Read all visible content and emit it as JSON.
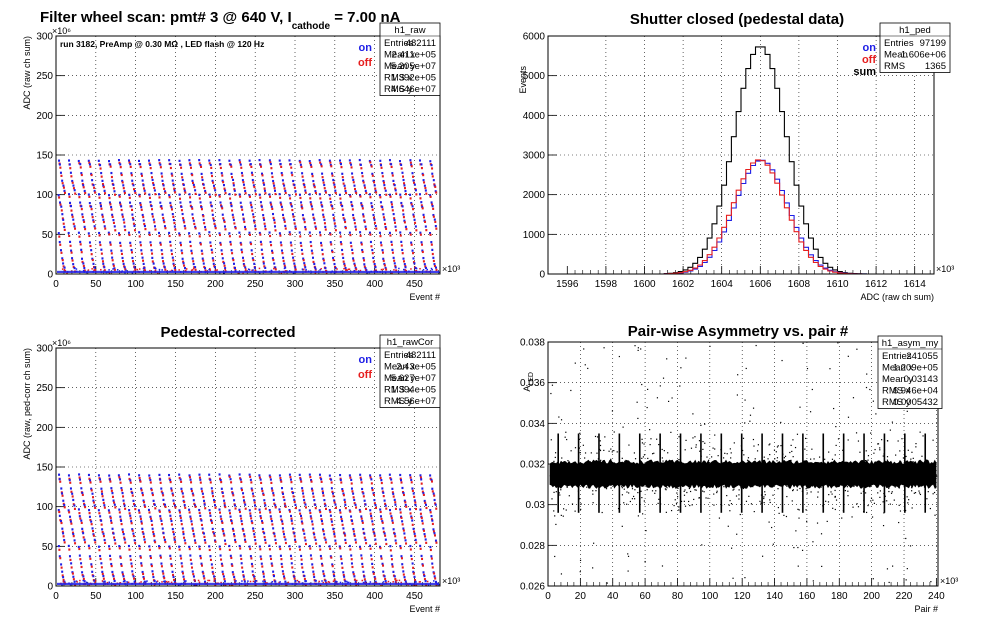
{
  "colors": {
    "on": "#1e1ee6",
    "off": "#e61e1e",
    "sum": "#000000"
  },
  "chart_data": [
    {
      "id": "raw",
      "type": "scatter",
      "title_parts": [
        "Filter wheel scan: pmt#",
        "3 @",
        "640 V, I",
        "cathode",
        "= 7.00 nA"
      ],
      "xlabel": "Event #",
      "ylabel": "ADC (raw ch sum)",
      "x_multiplier": "×10³",
      "y_multiplier": "×10⁶",
      "annotation": "run 3182, PreAmp @ 0.30 MΩ , LED flash @  120 Hz",
      "xlim": [
        0,
        482
      ],
      "ylim": [
        0,
        300
      ],
      "xticks": [
        "0",
        "50",
        "100",
        "150",
        "200",
        "250",
        "300",
        "350",
        "400",
        "450"
      ],
      "yticks": [
        "0",
        "50",
        "100",
        "150",
        "200",
        "250",
        "300"
      ],
      "grid": true,
      "legend": [
        "on",
        "off"
      ],
      "stats_box": {
        "name": "h1_raw",
        "rows": [
          [
            "Entries",
            "482111"
          ],
          [
            "Mean x",
            "2.411e+05"
          ],
          [
            "Mean y",
            "5.205e+07"
          ],
          [
            "RMS x",
            "1.392e+05"
          ],
          [
            "RMS y",
            "4.646e+07"
          ]
        ]
      },
      "band_levels": [
        143,
        138,
        127,
        118,
        112,
        105,
        100,
        90,
        85,
        75,
        68,
        60,
        52,
        40,
        30,
        20,
        13,
        8
      ],
      "scan_period": 12.6
    },
    {
      "id": "ped",
      "type": "line",
      "title": "Shutter closed (pedestal data)",
      "xlabel": "ADC (raw ch sum)",
      "ylabel": "Events",
      "x_multiplier": "×10³",
      "xlim": [
        1595,
        1615
      ],
      "ylim": [
        0,
        6000
      ],
      "xticks": [
        "1596",
        "1598",
        "1600",
        "1602",
        "1604",
        "1606",
        "1608",
        "1610",
        "1612",
        "1614"
      ],
      "yticks": [
        "0",
        "1000",
        "2000",
        "3000",
        "4000",
        "5000",
        "6000"
      ],
      "grid": true,
      "legend": [
        "on",
        "off",
        "sum"
      ],
      "stats_box": {
        "name": "h1_ped",
        "rows": [
          [
            "Entries",
            "97199"
          ],
          [
            "Mean",
            "1.606e+06"
          ],
          [
            "RMS",
            "1365"
          ]
        ]
      },
      "mean": 1606.0,
      "rms": 1.365,
      "bin_width": 0.25,
      "series": [
        {
          "name": "sum",
          "peak": 5750
        },
        {
          "name": "on",
          "peak": 2870
        },
        {
          "name": "off",
          "peak": 2880
        }
      ]
    },
    {
      "id": "rawCor",
      "type": "scatter",
      "title": "Pedestal-corrected",
      "xlabel": "Event #",
      "ylabel": "ADC (raw, ped-corr ch sum)",
      "x_multiplier": "×10³",
      "y_multiplier": "×10⁶",
      "xlim": [
        0,
        482
      ],
      "ylim": [
        0,
        300
      ],
      "xticks": [
        "0",
        "50",
        "100",
        "150",
        "200",
        "250",
        "300",
        "350",
        "400",
        "450"
      ],
      "yticks": [
        "0",
        "50",
        "100",
        "150",
        "200",
        "250",
        "300"
      ],
      "grid": true,
      "legend": [
        "on",
        "off"
      ],
      "stats_box": {
        "name": "h1_rawCor",
        "rows": [
          [
            "Entries",
            "482111"
          ],
          [
            "Mean x",
            "2.43e+05"
          ],
          [
            "Mean y",
            "5.627e+07"
          ],
          [
            "RMS x",
            "1.394e+05"
          ],
          [
            "RMS y",
            "4.56e+07"
          ]
        ]
      },
      "band_levels": [
        140,
        134,
        123,
        117,
        108,
        102,
        96,
        88,
        82,
        72,
        66,
        58,
        50,
        38,
        28,
        18,
        12,
        6
      ],
      "scan_period": 12.6
    },
    {
      "id": "asym",
      "type": "scatter",
      "title": "Pair-wise Asymmetry vs. pair #",
      "xlabel": "Pair #",
      "ylabel": "A_LED",
      "x_multiplier": "×10³",
      "xlim": [
        0,
        241
      ],
      "ylim": [
        0.026,
        0.038
      ],
      "xticks": [
        "0",
        "20",
        "40",
        "60",
        "80",
        "100",
        "120",
        "140",
        "160",
        "180",
        "200",
        "220",
        "240"
      ],
      "yticks": [
        "0.026",
        "0.028",
        "0.03",
        "0.032",
        "0.034",
        "0.036",
        "0.038"
      ],
      "grid": true,
      "stats_box": {
        "name": "h1_asym_my",
        "rows": [
          [
            "Entries",
            "241055"
          ],
          [
            "Mean x",
            "1.209e+05"
          ],
          [
            "Mean y",
            "0.03143"
          ],
          [
            "RMS x",
            "6.946e+04"
          ],
          [
            "RMS y",
            "0.0005432"
          ]
        ]
      },
      "band_center": 0.0315,
      "band_halfwidth": 0.0006,
      "spike_period": 12.6,
      "spike_high": 0.0335,
      "spike_low": 0.0296
    }
  ]
}
